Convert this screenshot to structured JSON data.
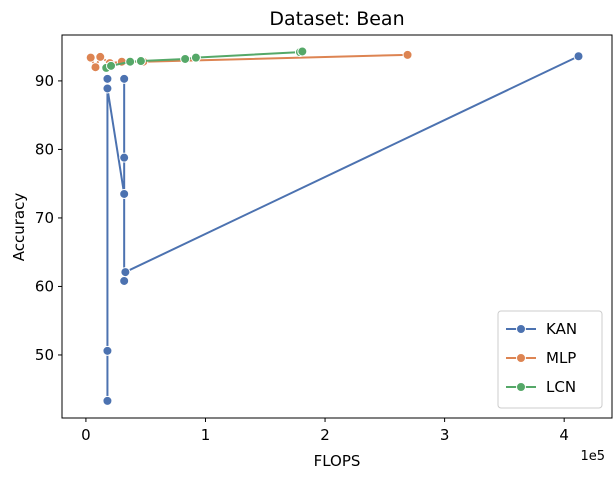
{
  "chart_data": {
    "type": "line",
    "title": "Dataset: Bean",
    "x_label": "FLOPS",
    "y_label": "Accuracy",
    "x_offset_label": "1e5",
    "xlim": [
      -0.2,
      4.4
    ],
    "ylim": [
      40.8,
      96.7
    ],
    "xticks": [
      0,
      1,
      2,
      3,
      4
    ],
    "yticks": [
      50,
      60,
      70,
      80,
      90
    ],
    "legend": "lower right",
    "series": [
      {
        "name": "KAN",
        "color": "#4c72b0",
        "x": [
          0.18,
          0.18,
          0.18,
          0.18,
          0.32,
          0.32,
          0.32,
          0.32,
          0.33,
          4.12
        ],
        "values": [
          43.3,
          50.6,
          90.3,
          88.9,
          73.5,
          78.8,
          90.3,
          60.8,
          62.1,
          93.6
        ]
      },
      {
        "name": "MLP",
        "color": "#dd8452",
        "x": [
          0.04,
          0.08,
          0.12,
          0.2,
          0.3,
          0.48,
          2.69
        ],
        "values": [
          93.4,
          92.0,
          93.5,
          92.6,
          92.8,
          92.8,
          93.8
        ]
      },
      {
        "name": "LCN",
        "color": "#55a868",
        "x": [
          0.17,
          0.21,
          0.37,
          0.46,
          0.83,
          0.92,
          1.79,
          1.81
        ],
        "values": [
          91.9,
          92.2,
          92.8,
          92.9,
          93.2,
          93.4,
          94.2,
          94.3
        ]
      }
    ]
  }
}
